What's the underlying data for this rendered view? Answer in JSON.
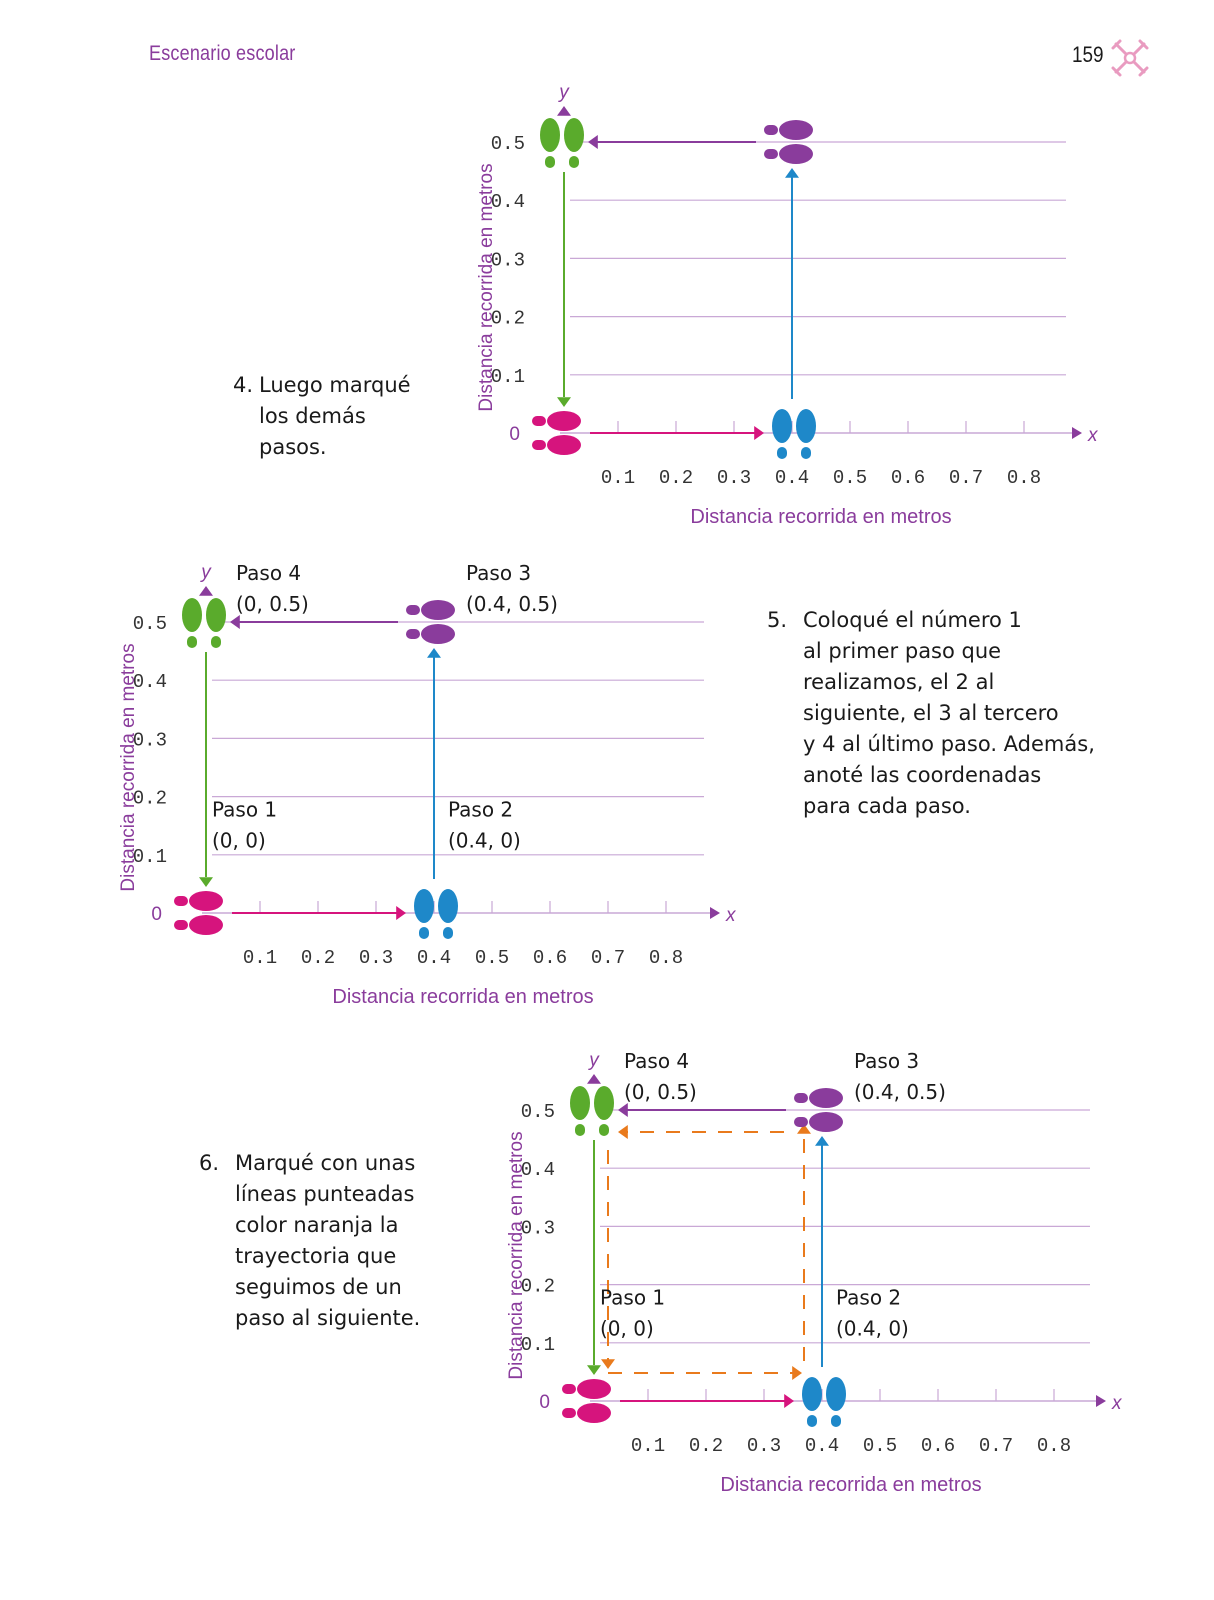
{
  "header": {
    "section": "Escenario escolar",
    "page_number": "159"
  },
  "instructions": [
    {
      "num": "4.",
      "lines": [
        "Luego marqué",
        "los demás",
        "pasos."
      ]
    },
    {
      "num": "5.",
      "lines": [
        "Coloqué el número 1",
        "al primer paso que",
        "realizamos, el 2 al",
        "siguiente, el 3 al tercero",
        "y 4 al último paso. Además,",
        "anoté las coordenadas",
        "para cada paso."
      ]
    },
    {
      "num": "6.",
      "lines": [
        "Marqué con unas",
        "líneas punteadas",
        "color naranja la",
        "trayectoria que",
        "seguimos de un",
        "paso al siguiente."
      ]
    }
  ],
  "colors": {
    "purple": "#8a3c9c",
    "green": "#5aab2c",
    "magenta": "#d6147d",
    "blue": "#1e88c9",
    "orange": "#e97a1c",
    "grid": "#c9a8d6"
  },
  "chart_data": [
    {
      "type": "scatter",
      "x_label": "Distancia recorrida en metros",
      "y_label": "Distancia recorrida en metros",
      "x_axis_name": "x",
      "y_axis_name": "y",
      "origin_label": "0",
      "x_ticks": [
        "0.1",
        "0.2",
        "0.3",
        "0.4",
        "0.5",
        "0.6",
        "0.7",
        "0.8"
      ],
      "y_ticks": [
        "0.1",
        "0.2",
        "0.3",
        "0.4",
        "0.5"
      ],
      "xlim": [
        0,
        0.8
      ],
      "ylim": [
        0,
        0.5
      ],
      "points": [
        {
          "x": 0,
          "y": 0,
          "color": "magenta",
          "footprint": "right"
        },
        {
          "x": 0.4,
          "y": 0,
          "color": "blue",
          "footprint": "up"
        },
        {
          "x": 0.4,
          "y": 0.5,
          "color": "purple",
          "footprint": "right"
        },
        {
          "x": 0,
          "y": 0.5,
          "color": "green",
          "footprint": "up"
        }
      ],
      "arrows": [
        {
          "from": [
            0,
            0
          ],
          "to": [
            0.4,
            0
          ],
          "color": "magenta"
        },
        {
          "from": [
            0.4,
            0
          ],
          "to": [
            0.4,
            0.5
          ],
          "color": "blue"
        },
        {
          "from": [
            0.4,
            0.5
          ],
          "to": [
            0,
            0.5
          ],
          "color": "purple"
        },
        {
          "from": [
            0,
            0.5
          ],
          "to": [
            0,
            0
          ],
          "color": "green"
        }
      ],
      "labels": [],
      "dashed_path": false
    },
    {
      "type": "scatter",
      "x_label": "Distancia recorrida en metros",
      "y_label": "Distancia recorrida en metros",
      "x_axis_name": "x",
      "y_axis_name": "y",
      "origin_label": "0",
      "x_ticks": [
        "0.1",
        "0.2",
        "0.3",
        "0.4",
        "0.5",
        "0.6",
        "0.7",
        "0.8"
      ],
      "y_ticks": [
        "0.1",
        "0.2",
        "0.3",
        "0.4",
        "0.5"
      ],
      "xlim": [
        0,
        0.8
      ],
      "ylim": [
        0,
        0.5
      ],
      "points": [
        {
          "x": 0,
          "y": 0,
          "color": "magenta",
          "footprint": "right"
        },
        {
          "x": 0.4,
          "y": 0,
          "color": "blue",
          "footprint": "up"
        },
        {
          "x": 0.4,
          "y": 0.5,
          "color": "purple",
          "footprint": "right"
        },
        {
          "x": 0,
          "y": 0.5,
          "color": "green",
          "footprint": "up"
        }
      ],
      "arrows": [
        {
          "from": [
            0,
            0
          ],
          "to": [
            0.4,
            0
          ],
          "color": "magenta"
        },
        {
          "from": [
            0.4,
            0
          ],
          "to": [
            0.4,
            0.5
          ],
          "color": "blue"
        },
        {
          "from": [
            0.4,
            0.5
          ],
          "to": [
            0,
            0.5
          ],
          "color": "purple"
        },
        {
          "from": [
            0,
            0.5
          ],
          "to": [
            0,
            0
          ],
          "color": "green"
        }
      ],
      "labels": [
        {
          "name": "Paso 1",
          "coords": "(0, 0)",
          "x": 0,
          "y": 0
        },
        {
          "name": "Paso 2",
          "coords": "(0.4, 0)",
          "x": 0.4,
          "y": 0
        },
        {
          "name": "Paso 3",
          "coords": "(0.4, 0.5)",
          "x": 0.4,
          "y": 0.5
        },
        {
          "name": "Paso 4",
          "coords": "(0, 0.5)",
          "x": 0,
          "y": 0.5
        }
      ],
      "dashed_path": false
    },
    {
      "type": "scatter",
      "x_label": "Distancia recorrida en metros",
      "y_label": "Distancia recorrida en metros",
      "x_axis_name": "x",
      "y_axis_name": "y",
      "origin_label": "0",
      "x_ticks": [
        "0.1",
        "0.2",
        "0.3",
        "0.4",
        "0.5",
        "0.6",
        "0.7",
        "0.8"
      ],
      "y_ticks": [
        "0.1",
        "0.2",
        "0.3",
        "0.4",
        "0.5"
      ],
      "xlim": [
        0,
        0.8
      ],
      "ylim": [
        0,
        0.5
      ],
      "points": [
        {
          "x": 0,
          "y": 0,
          "color": "magenta",
          "footprint": "right"
        },
        {
          "x": 0.4,
          "y": 0,
          "color": "blue",
          "footprint": "up"
        },
        {
          "x": 0.4,
          "y": 0.5,
          "color": "purple",
          "footprint": "right"
        },
        {
          "x": 0,
          "y": 0.5,
          "color": "green",
          "footprint": "up"
        }
      ],
      "arrows": [
        {
          "from": [
            0,
            0
          ],
          "to": [
            0.4,
            0
          ],
          "color": "magenta"
        },
        {
          "from": [
            0.4,
            0
          ],
          "to": [
            0.4,
            0.5
          ],
          "color": "blue"
        },
        {
          "from": [
            0.4,
            0.5
          ],
          "to": [
            0,
            0.5
          ],
          "color": "purple"
        },
        {
          "from": [
            0,
            0.5
          ],
          "to": [
            0,
            0
          ],
          "color": "green"
        }
      ],
      "labels": [
        {
          "name": "Paso 1",
          "coords": "(0, 0)",
          "x": 0,
          "y": 0
        },
        {
          "name": "Paso 2",
          "coords": "(0.4, 0)",
          "x": 0.4,
          "y": 0
        },
        {
          "name": "Paso 3",
          "coords": "(0.4, 0.5)",
          "x": 0.4,
          "y": 0.5
        },
        {
          "name": "Paso 4",
          "coords": "(0, 0.5)",
          "x": 0,
          "y": 0.5
        }
      ],
      "dashed_path": true
    }
  ]
}
